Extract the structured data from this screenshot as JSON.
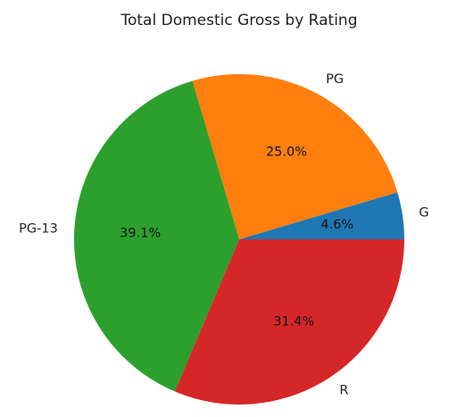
{
  "chart_data": {
    "type": "pie",
    "title": "Total Domestic Gross by Rating",
    "categories": [
      "G",
      "PG",
      "PG-13",
      "R"
    ],
    "values": [
      4.6,
      25.0,
      39.1,
      31.4
    ],
    "value_labels": [
      "4.6%",
      "25.0%",
      "39.1%",
      "31.4%"
    ],
    "colors": [
      "#1f77b4",
      "#ff7f0e",
      "#2ca02c",
      "#d62728"
    ],
    "start_angle_deg": 0,
    "direction": "counterclockwise",
    "legend": "none"
  }
}
